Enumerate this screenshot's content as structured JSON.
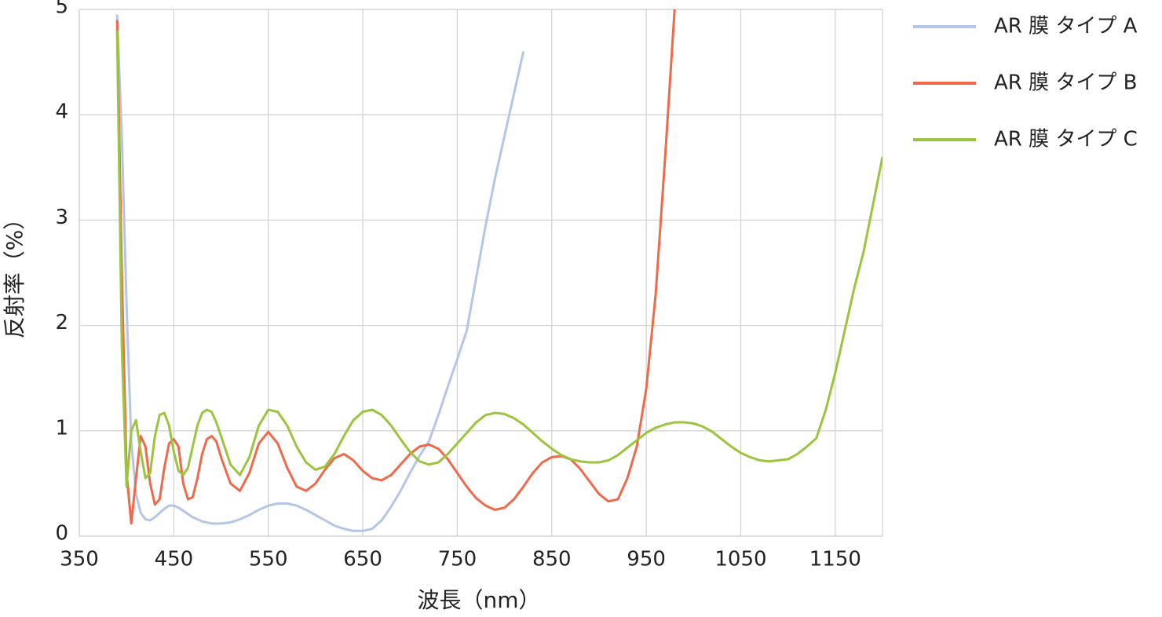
{
  "chart_data": {
    "type": "line",
    "xlabel": "波長（nm）",
    "ylabel": "反射率（%）",
    "xlim": [
      350,
      1200
    ],
    "ylim": [
      0,
      5
    ],
    "xticks": [
      350,
      450,
      550,
      650,
      750,
      850,
      950,
      1050,
      1150
    ],
    "yticks": [
      0,
      1,
      2,
      3,
      4,
      5
    ],
    "grid": true,
    "legend": "right",
    "x": [
      390,
      395,
      400,
      405,
      410,
      415,
      420,
      425,
      430,
      435,
      440,
      445,
      450,
      455,
      460,
      465,
      470,
      475,
      480,
      485,
      490,
      495,
      500,
      510,
      520,
      530,
      540,
      550,
      560,
      570,
      580,
      590,
      600,
      610,
      620,
      630,
      640,
      650,
      660,
      670,
      680,
      690,
      700,
      710,
      720,
      730,
      740,
      750,
      760,
      770,
      780,
      790,
      800,
      810,
      820,
      830,
      840,
      850,
      860,
      870,
      880,
      890,
      900,
      910,
      920,
      930,
      940,
      950,
      960,
      970,
      980,
      990,
      1000,
      1010,
      1020,
      1030,
      1040,
      1050,
      1060,
      1070,
      1080,
      1090,
      1100,
      1110,
      1120,
      1130,
      1140,
      1150,
      1160,
      1170,
      1180,
      1190,
      1200
    ],
    "series": [
      {
        "name": "AR 膜 タイプ A",
        "color": "#b3c6ea",
        "values": [
          4.95,
          3.8,
          2.2,
          0.9,
          0.4,
          0.22,
          0.16,
          0.15,
          0.18,
          0.22,
          0.26,
          0.29,
          0.29,
          0.27,
          0.24,
          0.21,
          0.18,
          0.16,
          0.14,
          0.13,
          0.12,
          0.12,
          0.12,
          0.13,
          0.16,
          0.2,
          0.25,
          0.29,
          0.31,
          0.31,
          0.29,
          0.25,
          0.2,
          0.15,
          0.1,
          0.07,
          0.05,
          0.05,
          0.07,
          0.15,
          0.28,
          0.43,
          0.6,
          0.76,
          0.9,
          1.15,
          1.42,
          1.68,
          1.95,
          2.45,
          2.95,
          3.4,
          3.8,
          4.2,
          4.6,
          null,
          null,
          null,
          null,
          null,
          null,
          null,
          null,
          null,
          null,
          null,
          null,
          null,
          null,
          null,
          null,
          null,
          null,
          null,
          null,
          null,
          null,
          null,
          null,
          null,
          null,
          null,
          null,
          null,
          null,
          null,
          null,
          null,
          null,
          null,
          null,
          null,
          null
        ]
      },
      {
        "name": "AR 膜 タイプ B",
        "color": "#f0694a",
        "values": [
          4.9,
          2.5,
          0.6,
          0.12,
          0.55,
          0.95,
          0.85,
          0.5,
          0.3,
          0.35,
          0.65,
          0.88,
          0.92,
          0.85,
          0.5,
          0.35,
          0.37,
          0.55,
          0.78,
          0.92,
          0.95,
          0.9,
          0.75,
          0.5,
          0.43,
          0.6,
          0.88,
          0.99,
          0.88,
          0.65,
          0.47,
          0.43,
          0.5,
          0.63,
          0.74,
          0.78,
          0.72,
          0.62,
          0.55,
          0.53,
          0.58,
          0.68,
          0.78,
          0.85,
          0.87,
          0.83,
          0.73,
          0.6,
          0.47,
          0.36,
          0.29,
          0.25,
          0.27,
          0.35,
          0.47,
          0.6,
          0.7,
          0.75,
          0.76,
          0.73,
          0.64,
          0.52,
          0.4,
          0.33,
          0.35,
          0.55,
          0.85,
          1.4,
          2.3,
          3.6,
          5.0,
          null,
          null,
          null,
          null,
          null,
          null,
          null,
          null,
          null,
          null,
          null,
          null,
          null,
          null,
          null,
          null,
          null,
          null,
          null,
          null,
          null,
          null
        ]
      },
      {
        "name": "AR 膜 タイプ C",
        "color": "#9cc43c",
        "values": [
          4.8,
          1.8,
          0.47,
          1.0,
          1.1,
          0.8,
          0.55,
          0.6,
          0.95,
          1.15,
          1.17,
          1.05,
          0.8,
          0.62,
          0.58,
          0.65,
          0.85,
          1.05,
          1.17,
          1.2,
          1.18,
          1.08,
          0.95,
          0.68,
          0.58,
          0.75,
          1.05,
          1.2,
          1.18,
          1.05,
          0.85,
          0.7,
          0.63,
          0.66,
          0.78,
          0.95,
          1.1,
          1.18,
          1.2,
          1.15,
          1.05,
          0.92,
          0.8,
          0.71,
          0.68,
          0.7,
          0.78,
          0.88,
          0.98,
          1.08,
          1.15,
          1.17,
          1.16,
          1.12,
          1.06,
          0.98,
          0.9,
          0.83,
          0.77,
          0.73,
          0.71,
          0.7,
          0.7,
          0.72,
          0.77,
          0.84,
          0.91,
          0.98,
          1.03,
          1.06,
          1.08,
          1.08,
          1.07,
          1.04,
          0.99,
          0.92,
          0.85,
          0.79,
          0.75,
          0.72,
          0.71,
          0.72,
          0.73,
          0.78,
          0.85,
          0.93,
          1.2,
          1.55,
          1.95,
          2.35,
          2.7,
          3.15,
          3.6
        ]
      }
    ]
  }
}
